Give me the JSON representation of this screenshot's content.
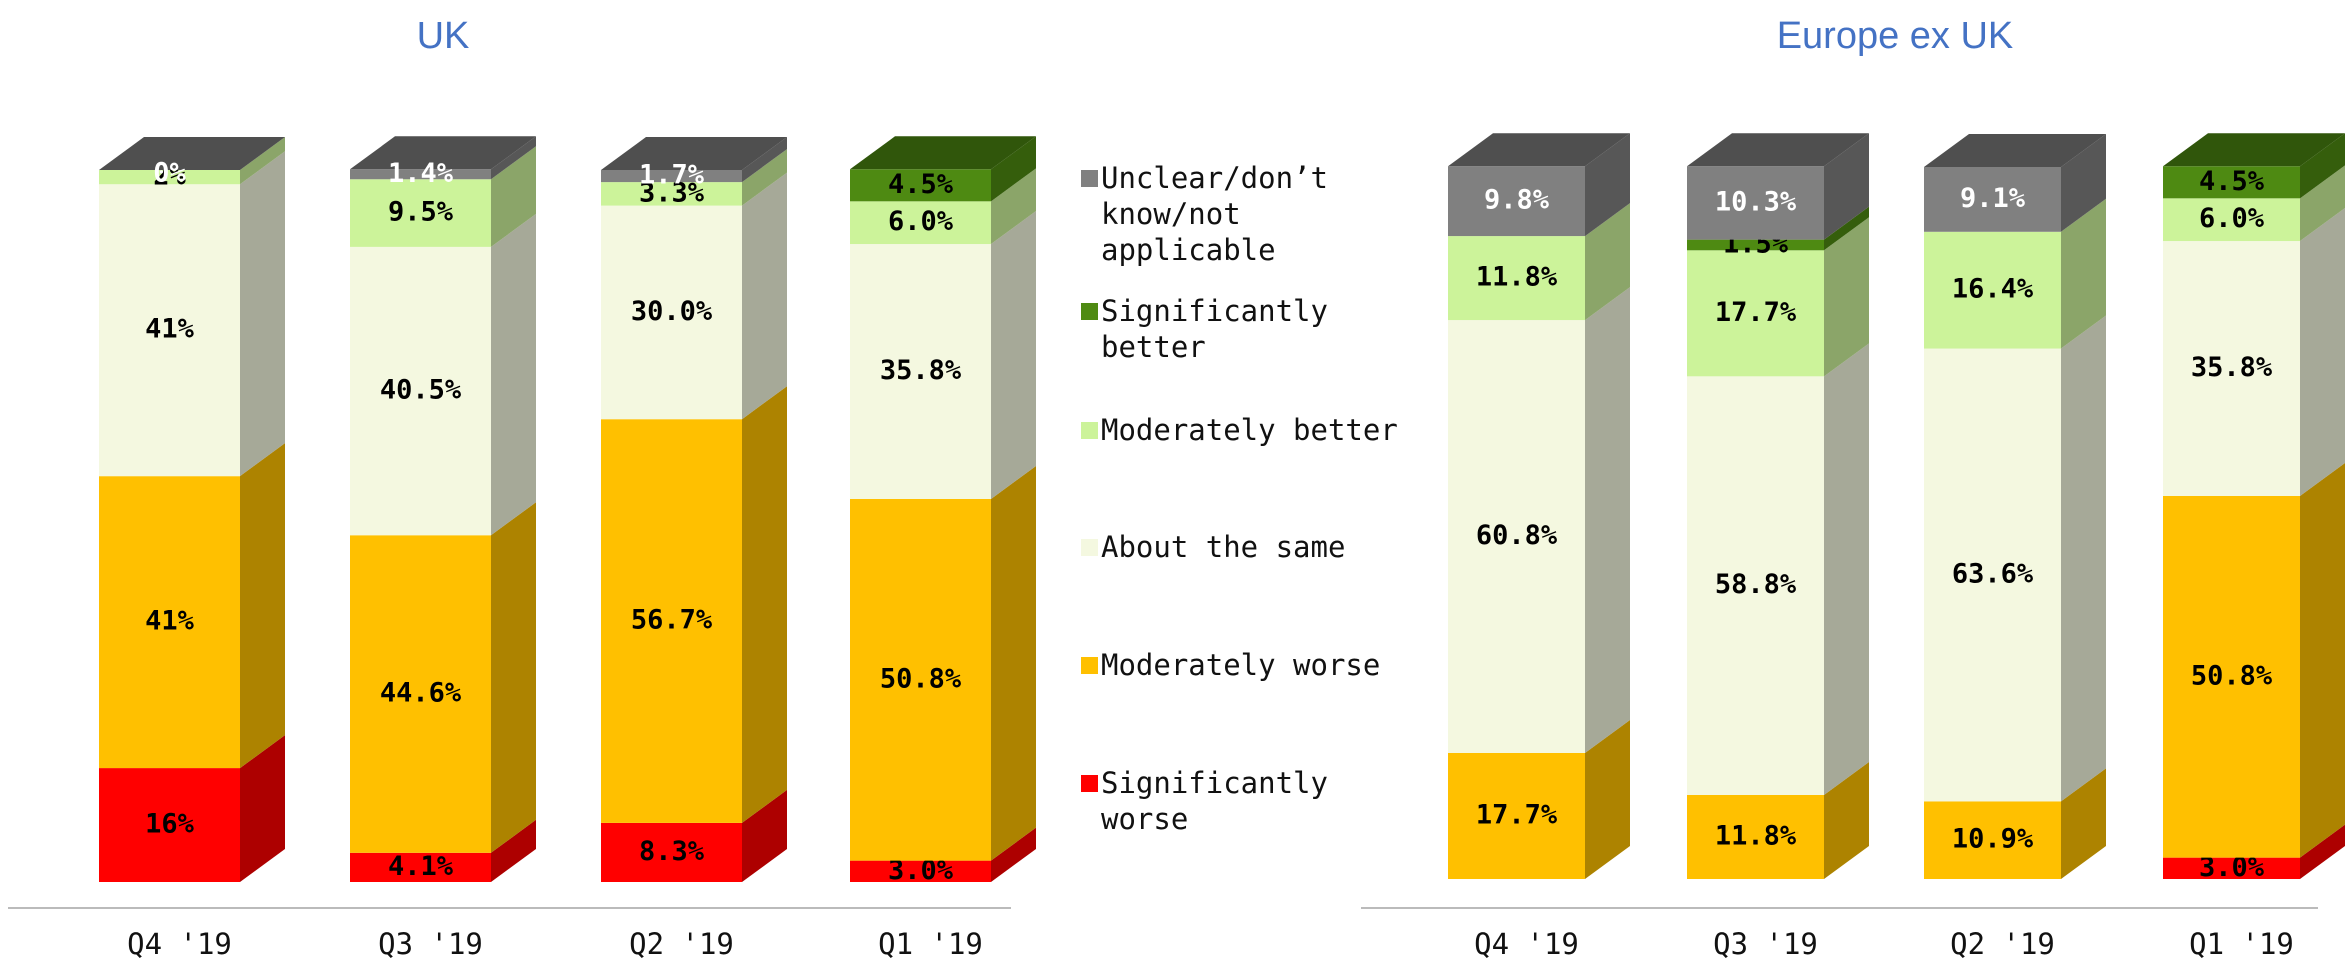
{
  "chart_data": [
    {
      "type": "bar",
      "stacked": true,
      "title": "UK",
      "categories": [
        "Q4 '19",
        "Q3 '19",
        "Q2 '19",
        "Q1 '19"
      ],
      "ylim": [
        0,
        100
      ],
      "series": [
        {
          "name": "Significantly worse",
          "color": "#ff0000",
          "values": [
            16,
            4.1,
            8.3,
            3.0
          ],
          "value_labels": [
            "16%",
            "4.1%",
            "8.3%",
            "3.0%"
          ]
        },
        {
          "name": "Moderately worse",
          "color": "#ffc000",
          "values": [
            41,
            44.6,
            56.7,
            50.8
          ],
          "value_labels": [
            "41%",
            "44.6%",
            "56.7%",
            "50.8%"
          ]
        },
        {
          "name": "About the same",
          "color": "#f4f8e0",
          "values": [
            41,
            40.5,
            30.0,
            35.8
          ],
          "value_labels": [
            "41%",
            "40.5%",
            "30.0%",
            "35.8%"
          ]
        },
        {
          "name": "Moderately better",
          "color": "#ccf39a",
          "values": [
            2,
            9.5,
            3.3,
            6.0
          ],
          "value_labels": [
            "2%",
            "9.5%",
            "3.3%",
            "6.0%"
          ]
        },
        {
          "name": "Significantly better",
          "color": "#4e8a12",
          "values": [
            null,
            null,
            null,
            4.5
          ],
          "value_labels": [
            null,
            null,
            null,
            "4.5%"
          ]
        },
        {
          "name": "Unclear/don’t know/not applicable",
          "color": "#808080",
          "values": [
            0,
            1.4,
            1.7,
            null
          ],
          "value_labels": [
            "0%",
            "1.4%",
            "1.7%",
            null
          ]
        }
      ]
    },
    {
      "type": "bar",
      "stacked": true,
      "title": "Europe ex UK",
      "categories": [
        "Q4 '19",
        "Q3 '19",
        "Q2 '19",
        "Q1 '19"
      ],
      "ylim": [
        0,
        100
      ],
      "series": [
        {
          "color": "#ff0000",
          "values": [
            null,
            null,
            null,
            3.0
          ],
          "value_labels": [
            null,
            null,
            null,
            "3.0%"
          ]
        },
        {
          "color": "#ffc000",
          "values": [
            17.7,
            11.8,
            10.9,
            50.8
          ],
          "value_labels": [
            "17.7%",
            "11.8%",
            "10.9%",
            "50.8%"
          ]
        },
        {
          "color": "#f4f8e0",
          "values": [
            60.8,
            58.8,
            63.6,
            35.8
          ],
          "value_labels": [
            "60.8%",
            "58.8%",
            "63.6%",
            "35.8%"
          ]
        },
        {
          "color": "#ccf39a",
          "values": [
            11.8,
            17.7,
            16.4,
            6.0
          ],
          "value_labels": [
            "11.8%",
            "17.7%",
            "16.4%",
            "6.0%"
          ]
        },
        {
          "color": "#4e8a12",
          "values": [
            null,
            1.5,
            null,
            4.5
          ],
          "value_labels": [
            null,
            "1.5%",
            null,
            "4.5%"
          ]
        },
        {
          "color": "#808080",
          "values": [
            9.8,
            10.3,
            9.1,
            null
          ],
          "value_labels": [
            "9.8%",
            "10.3%",
            "9.1%",
            null
          ]
        }
      ]
    }
  ]
}
